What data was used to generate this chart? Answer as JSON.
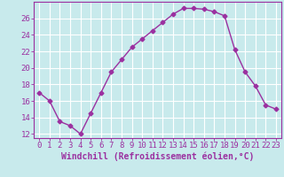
{
  "x": [
    0,
    1,
    2,
    3,
    4,
    5,
    6,
    7,
    8,
    9,
    10,
    11,
    12,
    13,
    14,
    15,
    16,
    17,
    18,
    19,
    20,
    21,
    22,
    23
  ],
  "y": [
    17,
    16,
    13.5,
    13,
    12,
    14.5,
    17,
    19.5,
    21,
    22.5,
    23.5,
    24.5,
    25.5,
    26.5,
    27.2,
    27.2,
    27.1,
    26.8,
    26.3,
    22.2,
    19.5,
    17.8,
    15.5,
    15
  ],
  "line_color": "#9b30a0",
  "marker": "D",
  "markersize": 2.5,
  "linewidth": 1.0,
  "xlabel": "Windchill (Refroidissement éolien,°C)",
  "ylabel": "",
  "xlim": [
    -0.5,
    23.5
  ],
  "ylim": [
    11.5,
    28.0
  ],
  "yticks": [
    12,
    14,
    16,
    18,
    20,
    22,
    24,
    26
  ],
  "xticks": [
    0,
    1,
    2,
    3,
    4,
    5,
    6,
    7,
    8,
    9,
    10,
    11,
    12,
    13,
    14,
    15,
    16,
    17,
    18,
    19,
    20,
    21,
    22,
    23
  ],
  "xtick_labels": [
    "0",
    "1",
    "2",
    "3",
    "4",
    "5",
    "6",
    "7",
    "8",
    "9",
    "10",
    "11",
    "12",
    "13",
    "14",
    "15",
    "16",
    "17",
    "18",
    "19",
    "20",
    "21",
    "22",
    "23"
  ],
  "background_color": "#c8eaec",
  "grid_color": "#ffffff",
  "axis_color": "#9b30a0",
  "tick_color": "#9b30a0",
  "xlabel_color": "#9b30a0",
  "xlabel_fontsize": 7,
  "tick_fontsize": 6.5
}
